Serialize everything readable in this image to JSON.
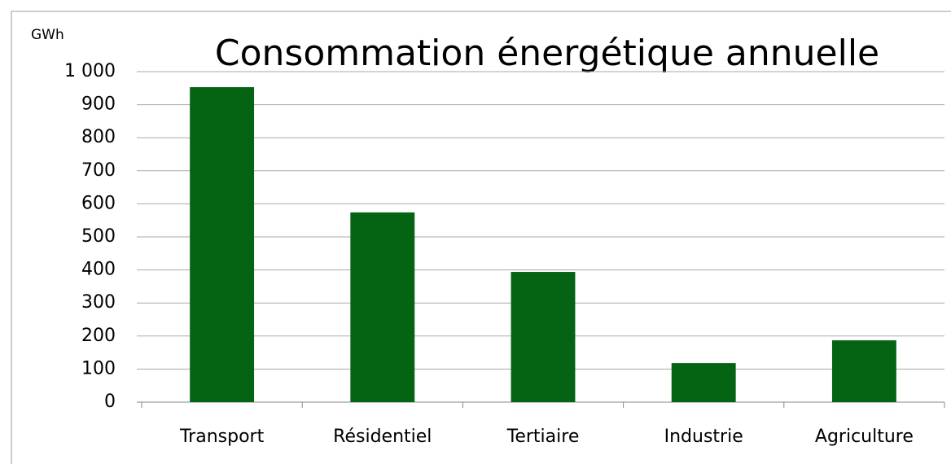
{
  "chart_data": {
    "type": "bar",
    "title": "Consommation énergétique annuelle",
    "y_label": "GWh",
    "categories": [
      "Transport",
      "Résidentiel",
      "Tertiaire",
      "Industrie",
      "Agriculture"
    ],
    "values": [
      953,
      574,
      394,
      118,
      187
    ],
    "color": "#046414",
    "ylim": [
      0,
      1000
    ],
    "yticks": [
      0,
      100,
      200,
      300,
      400,
      500,
      600,
      700,
      800,
      900,
      {
        "value": 1000,
        "label": "1 000"
      }
    ],
    "grid": true
  }
}
